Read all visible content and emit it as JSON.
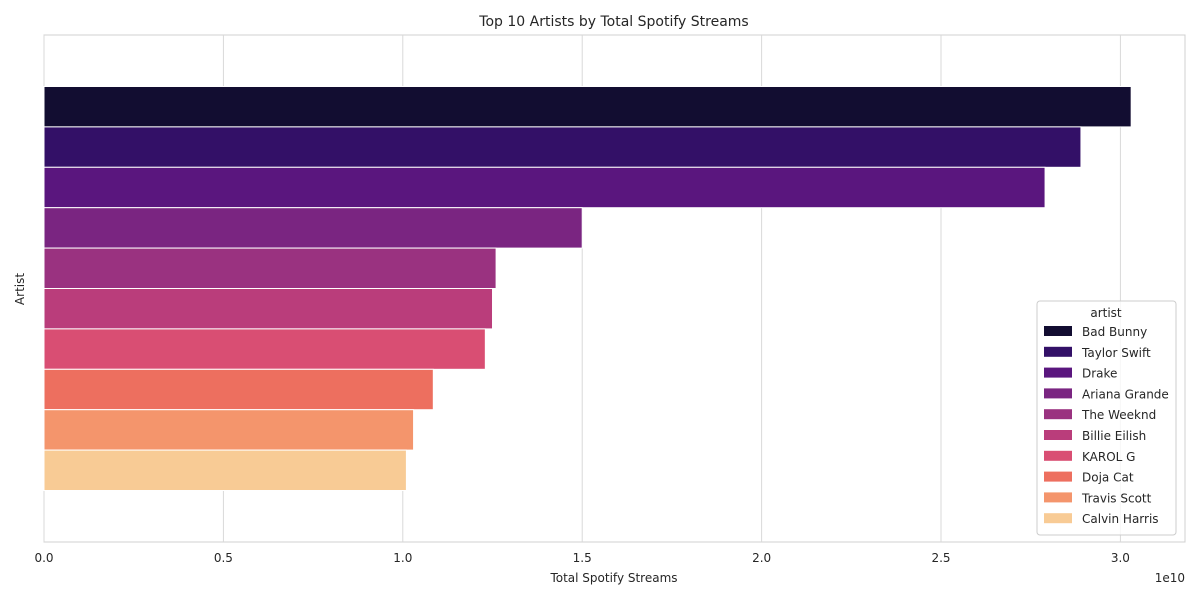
{
  "chart_data": {
    "type": "bar",
    "orientation": "horizontal",
    "title": "Top 10 Artists by Total Spotify Streams",
    "xlabel": "Total Spotify Streams",
    "ylabel": "Artist",
    "x_scale_label": "1e10",
    "xlim": [
      0,
      3.18
    ],
    "xticks": [
      "0.0",
      "0.5",
      "1.0",
      "1.5",
      "2.0",
      "2.5",
      "3.0"
    ],
    "grid": true,
    "legend_title": "artist",
    "legend_position": "lower-right",
    "categories": [
      "Bad Bunny",
      "Taylor Swift",
      "Drake",
      "Ariana Grande",
      "The Weeknd",
      "Billie Eilish",
      "KAROL G",
      "Doja Cat",
      "Travis Scott",
      "Calvin Harris"
    ],
    "values": [
      3.03,
      2.89,
      2.79,
      1.5,
      1.26,
      1.25,
      1.23,
      1.085,
      1.03,
      1.01
    ],
    "colors": [
      "#120d31",
      "#331067",
      "#5a167e",
      "#7a2581",
      "#9a3280",
      "#ba3d7b",
      "#d94e73",
      "#ed6f5f",
      "#f4956c",
      "#f8cb95"
    ]
  }
}
